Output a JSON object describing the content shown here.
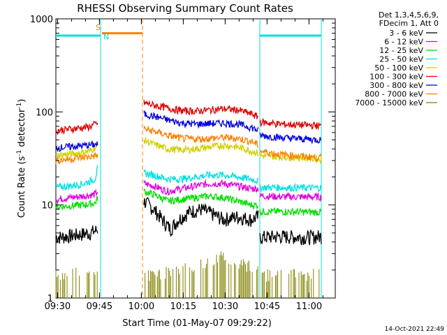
{
  "chart_data": {
    "type": "line",
    "title": "RHESSI Observing Summary Count Rates",
    "xlabel": "Start Time (01-May-07 09:29:22)",
    "ylabel_main": "Count Rate (s",
    "ylabel_sup1": "-1",
    "ylabel_mid": " detector",
    "ylabel_sup2": "-1",
    "ylabel_end": ")",
    "y_scale": "log",
    "ylim": [
      1,
      1000
    ],
    "xlim_minutes": [
      0,
      100
    ],
    "x_ticks": [
      {
        "min": 0.6,
        "label": "09:30"
      },
      {
        "min": 15.6,
        "label": "09:45"
      },
      {
        "min": 30.6,
        "label": "10:00"
      },
      {
        "min": 45.6,
        "label": "10:15"
      },
      {
        "min": 60.6,
        "label": "10:30"
      },
      {
        "min": 75.6,
        "label": "10:45"
      },
      {
        "min": 90.6,
        "label": "11:00"
      }
    ],
    "y_ticks": [
      {
        "v": 1,
        "label": "1"
      },
      {
        "v": 10,
        "label": "10"
      },
      {
        "v": 100,
        "label": "100"
      },
      {
        "v": 1000,
        "label": "1000"
      }
    ],
    "legend_header": [
      "Det 1,3,4,5,6,9,",
      "FDecim 1, Att 0"
    ],
    "series": [
      {
        "name": "3 - 6 keV",
        "color": "#000000",
        "seg1": [
          [
            0,
            4.5
          ],
          [
            4,
            4.6
          ],
          [
            8,
            4.8
          ],
          [
            12,
            5.0
          ],
          [
            15,
            5.4
          ]
        ],
        "seg2": [
          [
            31.5,
            11
          ],
          [
            35,
            9
          ],
          [
            38,
            7
          ],
          [
            41,
            5.5
          ],
          [
            44,
            7
          ],
          [
            48,
            8.5
          ],
          [
            52,
            9
          ],
          [
            56,
            8
          ],
          [
            60,
            7
          ],
          [
            65,
            7.5
          ],
          [
            70,
            7
          ],
          [
            72.5,
            7.5
          ]
        ],
        "seg3": [
          [
            73,
            4.5
          ],
          [
            80,
            4.6
          ],
          [
            90,
            4.5
          ],
          [
            95,
            4.6
          ]
        ]
      },
      {
        "name": "6 - 12 keV",
        "color": "#e000e0",
        "seg1": [
          [
            0,
            11.5
          ],
          [
            5,
            12
          ],
          [
            10,
            12.5
          ],
          [
            14,
            13
          ],
          [
            15,
            14
          ]
        ],
        "seg2": [
          [
            31.5,
            17
          ],
          [
            35,
            16
          ],
          [
            40,
            14
          ],
          [
            45,
            15
          ],
          [
            50,
            16
          ],
          [
            55,
            17
          ],
          [
            60,
            17
          ],
          [
            65,
            16
          ],
          [
            70,
            15
          ],
          [
            72.5,
            15
          ]
        ],
        "seg3": [
          [
            73,
            12.5
          ],
          [
            80,
            12.3
          ],
          [
            90,
            12.2
          ],
          [
            95,
            12.2
          ]
        ]
      },
      {
        "name": "12 - 25 keV",
        "color": "#00e000",
        "seg1": [
          [
            0,
            9.5
          ],
          [
            5,
            9.8
          ],
          [
            10,
            10
          ],
          [
            14,
            10.5
          ],
          [
            15,
            12
          ]
        ],
        "seg2": [
          [
            31.5,
            14
          ],
          [
            35,
            13
          ],
          [
            40,
            11
          ],
          [
            45,
            11.5
          ],
          [
            50,
            12
          ],
          [
            55,
            12.5
          ],
          [
            60,
            12
          ],
          [
            65,
            11
          ],
          [
            70,
            10
          ],
          [
            72.5,
            10
          ]
        ],
        "seg3": [
          [
            73,
            8.5
          ],
          [
            80,
            8.5
          ],
          [
            90,
            8.4
          ],
          [
            95,
            8.4
          ]
        ]
      },
      {
        "name": "25 - 50 keV",
        "color": "#00e0e0",
        "seg1": [
          [
            0,
            15.5
          ],
          [
            5,
            16
          ],
          [
            10,
            17
          ],
          [
            14,
            19
          ],
          [
            15,
            25
          ]
        ],
        "seg2": [
          [
            31.5,
            22
          ],
          [
            35,
            21
          ],
          [
            40,
            19
          ],
          [
            45,
            19
          ],
          [
            50,
            20
          ],
          [
            55,
            21
          ],
          [
            60,
            21
          ],
          [
            65,
            20
          ],
          [
            70,
            19
          ],
          [
            72.5,
            18
          ]
        ],
        "seg3": [
          [
            73,
            15.5
          ],
          [
            80,
            15.4
          ],
          [
            90,
            15.3
          ],
          [
            95,
            15.3
          ]
        ]
      },
      {
        "name": "50 - 100 keV",
        "color": "#d0d000",
        "seg1": [
          [
            0,
            34
          ],
          [
            4,
            35
          ],
          [
            8,
            36
          ],
          [
            12,
            38
          ],
          [
            15,
            43
          ]
        ],
        "seg2": [
          [
            31.5,
            50
          ],
          [
            35,
            45
          ],
          [
            40,
            40
          ],
          [
            45,
            39
          ],
          [
            50,
            40
          ],
          [
            55,
            42
          ],
          [
            60,
            44
          ],
          [
            65,
            42
          ],
          [
            70,
            38
          ],
          [
            72.5,
            36
          ]
        ],
        "seg3": [
          [
            73,
            34
          ],
          [
            80,
            33
          ],
          [
            90,
            32
          ],
          [
            95,
            31
          ]
        ]
      },
      {
        "name": "100 - 300 keV",
        "color": "#e00000",
        "seg1": [
          [
            0,
            63
          ],
          [
            4,
            65
          ],
          [
            8,
            67
          ],
          [
            12,
            69
          ],
          [
            15,
            76
          ]
        ],
        "seg2": [
          [
            31.5,
            125
          ],
          [
            35,
            118
          ],
          [
            40,
            110
          ],
          [
            45,
            103
          ],
          [
            50,
            102
          ],
          [
            55,
            105
          ],
          [
            60,
            108
          ],
          [
            65,
            105
          ],
          [
            70,
            95
          ],
          [
            72.5,
            88
          ]
        ],
        "seg3": [
          [
            73,
            78
          ],
          [
            80,
            74
          ],
          [
            90,
            72
          ],
          [
            95,
            71
          ]
        ]
      },
      {
        "name": "300 - 800 keV",
        "color": "#0000e0",
        "seg1": [
          [
            0,
            41
          ],
          [
            4,
            42
          ],
          [
            8,
            43
          ],
          [
            12,
            44
          ],
          [
            15,
            45
          ]
        ],
        "seg2": [
          [
            31.5,
            95
          ],
          [
            35,
            90
          ],
          [
            40,
            82
          ],
          [
            45,
            76
          ],
          [
            50,
            74
          ],
          [
            55,
            75
          ],
          [
            60,
            76
          ],
          [
            65,
            74
          ],
          [
            70,
            68
          ],
          [
            72.5,
            63
          ]
        ],
        "seg3": [
          [
            73,
            56
          ],
          [
            80,
            53
          ],
          [
            90,
            51
          ],
          [
            95,
            50
          ]
        ]
      },
      {
        "name": "800 - 7000 keV",
        "color": "#ff8000",
        "seg1": [
          [
            0,
            30
          ],
          [
            4,
            31
          ],
          [
            8,
            32
          ],
          [
            12,
            33
          ],
          [
            15,
            34
          ]
        ],
        "seg2": [
          [
            31.5,
            66
          ],
          [
            35,
            62
          ],
          [
            40,
            56
          ],
          [
            45,
            52
          ],
          [
            50,
            51
          ],
          [
            55,
            52
          ],
          [
            60,
            53
          ],
          [
            65,
            52
          ],
          [
            70,
            48
          ],
          [
            72.5,
            44
          ]
        ],
        "seg3": [
          [
            73,
            38
          ],
          [
            80,
            35
          ],
          [
            90,
            33
          ],
          [
            95,
            32
          ]
        ]
      },
      {
        "name": "7000 - 15000 keV",
        "color": "#808000",
        "seg1": [
          [
            0,
            1.7
          ],
          [
            5,
            1.8
          ],
          [
            10,
            1.8
          ],
          [
            15,
            1.7
          ]
        ],
        "seg2": [
          [
            31.5,
            1.6
          ],
          [
            40,
            1.8
          ],
          [
            50,
            2.0
          ],
          [
            60,
            2.6
          ],
          [
            65,
            2.2
          ],
          [
            72.5,
            1.9
          ]
        ],
        "seg3": [
          [
            73,
            1.6
          ],
          [
            80,
            1.7
          ],
          [
            90,
            1.7
          ],
          [
            95,
            1.7
          ]
        ]
      }
    ],
    "bands": {
      "s_label": "S",
      "n_label": "N",
      "s_color": "#ff8000",
      "n_color": "#00e0e0",
      "night1": [
        0,
        16
      ],
      "saa": [
        16.5,
        31
      ],
      "night2": [
        73,
        95
      ]
    },
    "date_stamp": "14-Oct-2021 22:49"
  }
}
